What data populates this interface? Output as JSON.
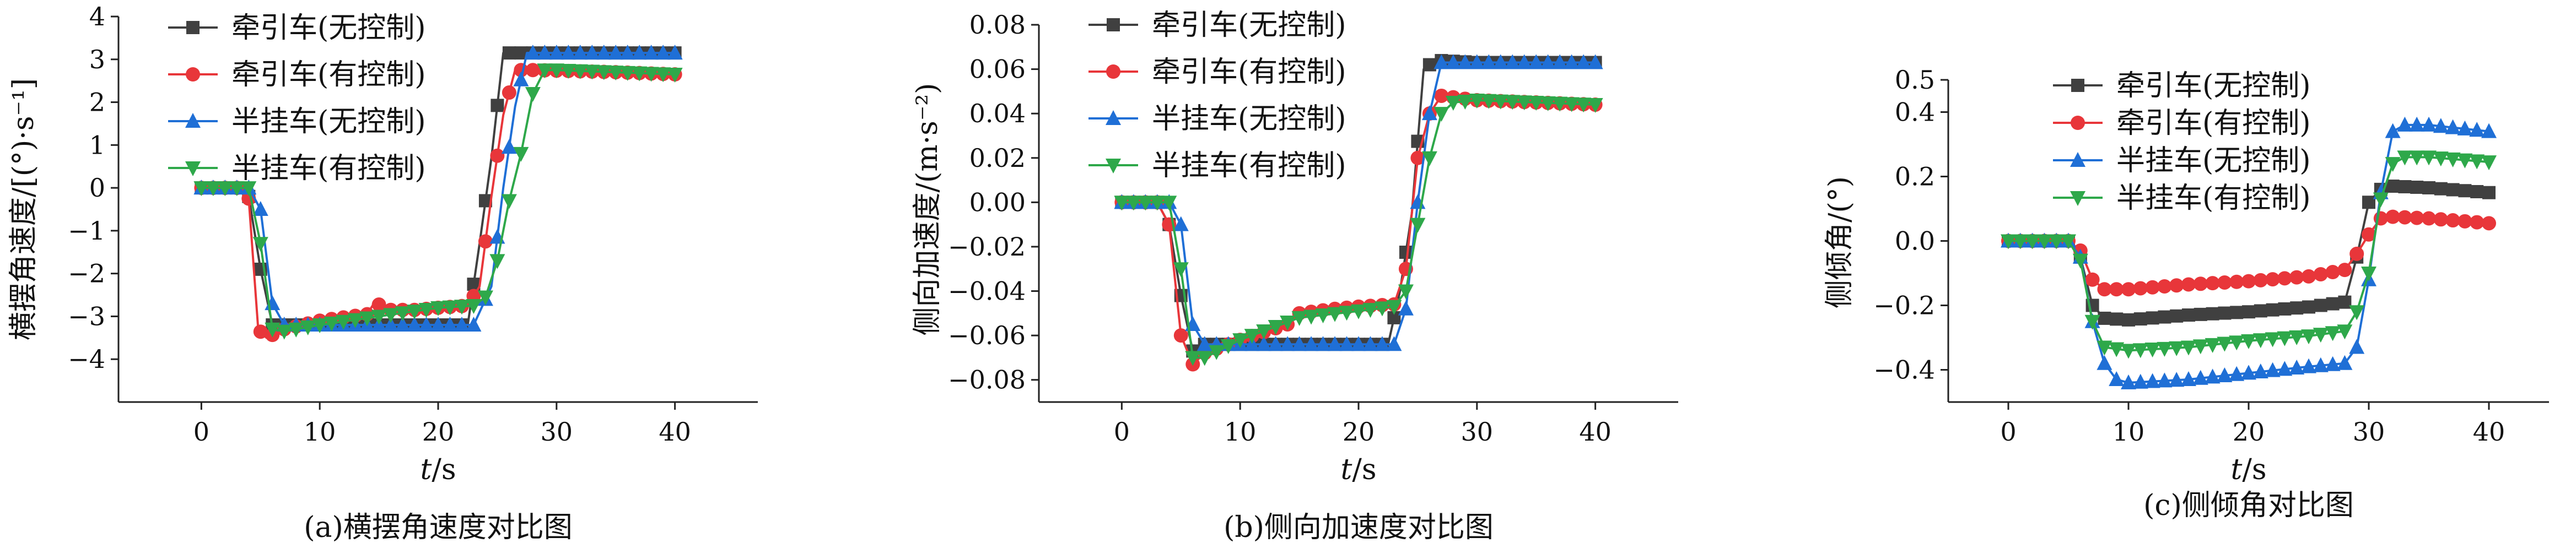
{
  "chart_data": [
    {
      "type": "line",
      "caption": "(a)横摆角速度对比图",
      "xlabel_var": "t",
      "xlabel_unit": "/s",
      "ylabel": "横摆角速度/[(°)·s⁻¹]",
      "xlim": [
        -7,
        47
      ],
      "ylim": [
        -5,
        4
      ],
      "xticks": [
        0,
        10,
        20,
        30,
        40
      ],
      "yticks": [
        -4,
        -3,
        -2,
        -1,
        0,
        1,
        2,
        3,
        4
      ],
      "ytick_labels": [
        "−4",
        "−3",
        "−2",
        "−1",
        "0",
        "1",
        "2",
        "3",
        "4"
      ],
      "legend_position": "top-left",
      "series": [
        {
          "name": "牵引车(无控制)",
          "color": "#404040",
          "marker": "square",
          "points": [
            [
              0,
              0
            ],
            [
              3,
              0
            ],
            [
              4,
              -0.2
            ],
            [
              5,
              -1.9
            ],
            [
              6,
              -3.2
            ],
            [
              7,
              -3.2
            ],
            [
              10,
              -3.2
            ],
            [
              15,
              -3.2
            ],
            [
              20,
              -3.2
            ],
            [
              22.5,
              -3.2
            ],
            [
              23.5,
              -1.3
            ],
            [
              24.5,
              0.7
            ],
            [
              25.5,
              3.15
            ],
            [
              26.5,
              3.15
            ],
            [
              27.5,
              3.15
            ],
            [
              30,
              3.15
            ],
            [
              35,
              3.15
            ],
            [
              40,
              3.15
            ]
          ]
        },
        {
          "name": "牵引车(有控制)",
          "color": "#e8363a",
          "marker": "circle",
          "points": [
            [
              0,
              0
            ],
            [
              3,
              0
            ],
            [
              4,
              -0.25
            ],
            [
              4.8,
              -3.3
            ],
            [
              5.5,
              -3.5
            ],
            [
              7,
              -3.3
            ],
            [
              10,
              -3.1
            ],
            [
              14,
              -2.95
            ],
            [
              14.8,
              -2.6
            ],
            [
              15.2,
              -2.85
            ],
            [
              18,
              -2.85
            ],
            [
              20,
              -2.8
            ],
            [
              22.5,
              -2.75
            ],
            [
              23.5,
              -2.3
            ],
            [
              24.5,
              -0.2
            ],
            [
              25.5,
              1.7
            ],
            [
              26.5,
              2.75
            ],
            [
              28,
              2.75
            ],
            [
              35,
              2.7
            ],
            [
              40,
              2.65
            ]
          ]
        },
        {
          "name": "半挂车(无控制)",
          "color": "#1f6fd6",
          "marker": "triangle-up",
          "points": [
            [
              0,
              0
            ],
            [
              4,
              0
            ],
            [
              5,
              -0.5
            ],
            [
              6,
              -2.7
            ],
            [
              7,
              -3.2
            ],
            [
              10,
              -3.2
            ],
            [
              15,
              -3.2
            ],
            [
              20,
              -3.2
            ],
            [
              23,
              -3.2
            ],
            [
              24.5,
              -2.3
            ],
            [
              25.5,
              0
            ],
            [
              26.5,
              1.9
            ],
            [
              27.5,
              3.15
            ],
            [
              30,
              3.15
            ],
            [
              35,
              3.15
            ],
            [
              40,
              3.15
            ]
          ]
        },
        {
          "name": "半挂车(有控制)",
          "color": "#2ea84a",
          "marker": "triangle-down",
          "points": [
            [
              0,
              0
            ],
            [
              4,
              0
            ],
            [
              5,
              -1.3
            ],
            [
              6,
              -3.3
            ],
            [
              7,
              -3.35
            ],
            [
              10,
              -3.2
            ],
            [
              15,
              -3.0
            ],
            [
              20,
              -2.8
            ],
            [
              23,
              -2.75
            ],
            [
              24,
              -2.55
            ],
            [
              25,
              -1.7
            ],
            [
              26,
              -0.3
            ],
            [
              27,
              0.8
            ],
            [
              28,
              2.2
            ],
            [
              29,
              2.75
            ],
            [
              30,
              2.75
            ],
            [
              35,
              2.7
            ],
            [
              40,
              2.65
            ]
          ]
        }
      ]
    },
    {
      "type": "line",
      "caption": "(b)侧向加速度对比图",
      "xlabel_var": "t",
      "xlabel_unit": "/s",
      "ylabel": "侧向加速度/(m·s⁻²)",
      "xlim": [
        -7,
        47
      ],
      "ylim": [
        -0.09,
        0.08
      ],
      "xticks": [
        0,
        10,
        20,
        30,
        40
      ],
      "yticks": [
        -0.08,
        -0.06,
        -0.04,
        -0.02,
        0.0,
        0.02,
        0.04,
        0.06,
        0.08
      ],
      "ytick_labels": [
        "−0.08",
        "−0.06",
        "−0.04",
        "−0.02",
        "0.00",
        "0.02",
        "0.04",
        "0.06",
        "0.08"
      ],
      "legend_position": "top-left",
      "series": [
        {
          "name": "牵引车(无控制)",
          "color": "#404040",
          "marker": "square",
          "points": [
            [
              0,
              0
            ],
            [
              3,
              0
            ],
            [
              4,
              -0.01
            ],
            [
              5,
              -0.042
            ],
            [
              6,
              -0.067
            ],
            [
              7,
              -0.064
            ],
            [
              10,
              -0.064
            ],
            [
              15,
              -0.064
            ],
            [
              20,
              -0.064
            ],
            [
              22.5,
              -0.064
            ],
            [
              23.5,
              -0.04
            ],
            [
              24.5,
              -0.005
            ],
            [
              25.5,
              0.06
            ],
            [
              26.5,
              0.064
            ],
            [
              30,
              0.063
            ],
            [
              35,
              0.063
            ],
            [
              40,
              0.063
            ]
          ]
        },
        {
          "name": "牵引车(有控制)",
          "color": "#e8363a",
          "marker": "circle",
          "points": [
            [
              0,
              0
            ],
            [
              3,
              0
            ],
            [
              4,
              -0.01
            ],
            [
              5,
              -0.06
            ],
            [
              6,
              -0.073
            ],
            [
              7,
              -0.068
            ],
            [
              10,
              -0.062
            ],
            [
              14,
              -0.055
            ],
            [
              15,
              -0.05
            ],
            [
              18,
              -0.048
            ],
            [
              20,
              -0.047
            ],
            [
              23,
              -0.046
            ],
            [
              24,
              -0.03
            ],
            [
              25,
              0.02
            ],
            [
              26,
              0.04
            ],
            [
              27,
              0.048
            ],
            [
              30,
              0.046
            ],
            [
              35,
              0.045
            ],
            [
              40,
              0.044
            ]
          ]
        },
        {
          "name": "半挂车(无控制)",
          "color": "#1f6fd6",
          "marker": "triangle-up",
          "points": [
            [
              0,
              0
            ],
            [
              4,
              0
            ],
            [
              5,
              -0.01
            ],
            [
              6,
              -0.055
            ],
            [
              7,
              -0.064
            ],
            [
              10,
              -0.064
            ],
            [
              15,
              -0.064
            ],
            [
              20,
              -0.064
            ],
            [
              23,
              -0.064
            ],
            [
              24,
              -0.048
            ],
            [
              25,
              0
            ],
            [
              26,
              0.04
            ],
            [
              27,
              0.063
            ],
            [
              30,
              0.063
            ],
            [
              35,
              0.063
            ],
            [
              40,
              0.063
            ]
          ]
        },
        {
          "name": "半挂车(有控制)",
          "color": "#2ea84a",
          "marker": "triangle-down",
          "points": [
            [
              0,
              0
            ],
            [
              4,
              0
            ],
            [
              5,
              -0.03
            ],
            [
              6,
              -0.07
            ],
            [
              7,
              -0.07
            ],
            [
              10,
              -0.062
            ],
            [
              15,
              -0.052
            ],
            [
              20,
              -0.049
            ],
            [
              23,
              -0.047
            ],
            [
              24,
              -0.04
            ],
            [
              25,
              -0.01
            ],
            [
              26,
              0.02
            ],
            [
              27,
              0.04
            ],
            [
              28,
              0.045
            ],
            [
              30,
              0.046
            ],
            [
              35,
              0.045
            ],
            [
              40,
              0.044
            ]
          ]
        }
      ]
    },
    {
      "type": "line",
      "caption": "(c)侧倾角对比图",
      "xlabel_var": "t",
      "xlabel_unit": "/s",
      "ylabel": "侧倾角/(°)",
      "xlim": [
        -5,
        45
      ],
      "ylim": [
        -0.5,
        0.5
      ],
      "xticks": [
        0,
        10,
        20,
        30,
        40
      ],
      "yticks": [
        -0.4,
        -0.2,
        0.0,
        0.2,
        0.4
      ],
      "ytick_labels": [
        "−0.4",
        "−0.2",
        "0.0",
        "0.2",
        "0.4"
      ],
      "ytick_labels_extra": [
        "0.5"
      ],
      "legend_position": "top-left",
      "series": [
        {
          "name": "牵引车(无控制)",
          "color": "#404040",
          "marker": "square",
          "points": [
            [
              0,
              0
            ],
            [
              5,
              0
            ],
            [
              6,
              -0.05
            ],
            [
              7,
              -0.2
            ],
            [
              8,
              -0.24
            ],
            [
              10,
              -0.245
            ],
            [
              15,
              -0.23
            ],
            [
              20,
              -0.22
            ],
            [
              25,
              -0.205
            ],
            [
              28,
              -0.19
            ],
            [
              29,
              -0.05
            ],
            [
              30,
              0.12
            ],
            [
              31,
              0.16
            ],
            [
              32,
              0.17
            ],
            [
              35,
              0.165
            ],
            [
              40,
              0.15
            ]
          ]
        },
        {
          "name": "牵引车(有控制)",
          "color": "#e8363a",
          "marker": "circle",
          "points": [
            [
              0,
              0
            ],
            [
              5,
              0
            ],
            [
              6,
              -0.03
            ],
            [
              7,
              -0.12
            ],
            [
              8,
              -0.15
            ],
            [
              10,
              -0.15
            ],
            [
              15,
              -0.135
            ],
            [
              20,
              -0.125
            ],
            [
              25,
              -0.11
            ],
            [
              28,
              -0.09
            ],
            [
              29,
              -0.04
            ],
            [
              30,
              0.02
            ],
            [
              31,
              0.07
            ],
            [
              32,
              0.075
            ],
            [
              35,
              0.07
            ],
            [
              40,
              0.055
            ]
          ]
        },
        {
          "name": "半挂车(无控制)",
          "color": "#1f6fd6",
          "marker": "triangle-up",
          "points": [
            [
              0,
              0
            ],
            [
              5,
              0
            ],
            [
              6,
              -0.05
            ],
            [
              7,
              -0.25
            ],
            [
              8,
              -0.38
            ],
            [
              9,
              -0.43
            ],
            [
              10,
              -0.44
            ],
            [
              15,
              -0.43
            ],
            [
              20,
              -0.41
            ],
            [
              25,
              -0.39
            ],
            [
              28,
              -0.38
            ],
            [
              29,
              -0.33
            ],
            [
              30,
              -0.12
            ],
            [
              31,
              0.15
            ],
            [
              32,
              0.34
            ],
            [
              33,
              0.36
            ],
            [
              35,
              0.36
            ],
            [
              40,
              0.34
            ]
          ]
        },
        {
          "name": "半挂车(有控制)",
          "color": "#2ea84a",
          "marker": "triangle-down",
          "points": [
            [
              0,
              0
            ],
            [
              5,
              0
            ],
            [
              6,
              -0.06
            ],
            [
              7,
              -0.25
            ],
            [
              8,
              -0.33
            ],
            [
              10,
              -0.34
            ],
            [
              15,
              -0.33
            ],
            [
              20,
              -0.31
            ],
            [
              25,
              -0.295
            ],
            [
              28,
              -0.28
            ],
            [
              29,
              -0.22
            ],
            [
              30,
              -0.1
            ],
            [
              31,
              0.13
            ],
            [
              32,
              0.24
            ],
            [
              33,
              0.26
            ],
            [
              35,
              0.26
            ],
            [
              40,
              0.245
            ]
          ]
        }
      ]
    }
  ]
}
